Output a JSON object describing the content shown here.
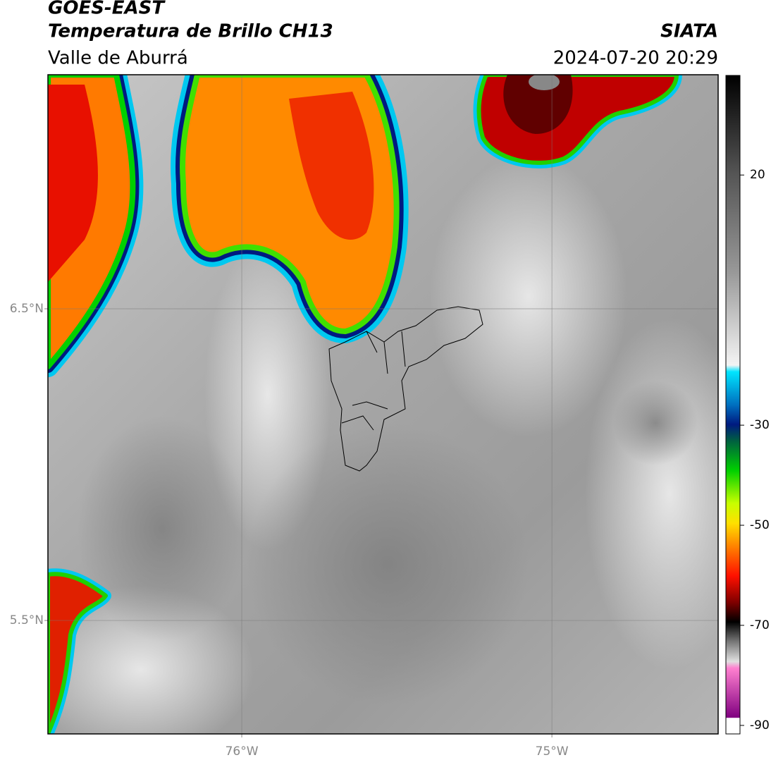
{
  "header": {
    "title": "GOES-EAST",
    "subtitle": "Temperatura de Brillo CH13",
    "region": "Valle de Aburrá",
    "source": "SIATA",
    "datetime": "2024-07-20 20:29"
  },
  "map": {
    "xlim": [
      -76.625,
      -74.464
    ],
    "ylim": [
      5.136,
      7.251
    ],
    "xticks": [
      {
        "value": -76,
        "label": "76°W"
      },
      {
        "value": -75,
        "label": "75°W"
      }
    ],
    "yticks": [
      {
        "value": 6.5,
        "label": "6.5°N"
      },
      {
        "value": 5.5,
        "label": "5.5°N"
      }
    ],
    "grid": true
  },
  "colorbar": {
    "lim": [
      -91.7,
      39.9
    ],
    "ticks": [
      20,
      -30,
      -50,
      -70,
      -90
    ]
  }
}
